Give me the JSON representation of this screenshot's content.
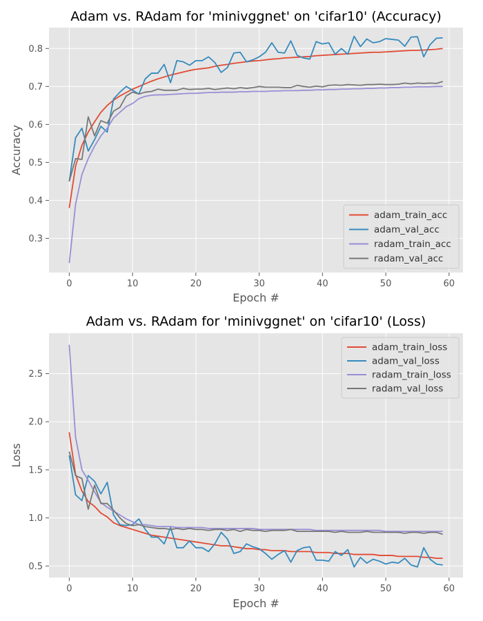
{
  "chart_data": [
    {
      "type": "line",
      "title": "Adam vs. RAdam for 'minivggnet' on 'cifar10' (Accuracy)",
      "xlabel": "Epoch #",
      "ylabel": "Accuracy",
      "xlim": [
        -3.2,
        62.2
      ],
      "ylim": [
        0.21,
        0.855
      ],
      "xticks": [
        0,
        10,
        20,
        30,
        40,
        50,
        60
      ],
      "yticks": [
        0.3,
        0.4,
        0.5,
        0.6,
        0.7,
        0.8
      ],
      "xtick_labels": [
        "0",
        "10",
        "20",
        "30",
        "40",
        "50",
        "60"
      ],
      "ytick_labels": [
        "0.3",
        "0.4",
        "0.5",
        "0.6",
        "0.7",
        "0.8"
      ],
      "grid": true,
      "legend_position": "lower-right",
      "series": [
        {
          "name": "adam_train_acc",
          "color": "#E24A33",
          "values": [
            0.38,
            0.49,
            0.545,
            0.58,
            0.607,
            0.632,
            0.65,
            0.664,
            0.675,
            0.684,
            0.693,
            0.7,
            0.707,
            0.714,
            0.72,
            0.725,
            0.73,
            0.734,
            0.738,
            0.742,
            0.745,
            0.747,
            0.749,
            0.753,
            0.756,
            0.758,
            0.761,
            0.763,
            0.765,
            0.767,
            0.768,
            0.77,
            0.772,
            0.773,
            0.775,
            0.776,
            0.777,
            0.778,
            0.779,
            0.781,
            0.782,
            0.783,
            0.784,
            0.785,
            0.786,
            0.787,
            0.788,
            0.789,
            0.79,
            0.79,
            0.791,
            0.792,
            0.793,
            0.794,
            0.795,
            0.795,
            0.796,
            0.797,
            0.798,
            0.8
          ]
        },
        {
          "name": "adam_val_acc",
          "color": "#348ABD",
          "values": [
            0.45,
            0.565,
            0.59,
            0.53,
            0.56,
            0.595,
            0.58,
            0.667,
            0.685,
            0.7,
            0.69,
            0.68,
            0.72,
            0.735,
            0.735,
            0.758,
            0.71,
            0.768,
            0.765,
            0.756,
            0.768,
            0.768,
            0.778,
            0.763,
            0.737,
            0.75,
            0.788,
            0.79,
            0.765,
            0.77,
            0.778,
            0.79,
            0.815,
            0.79,
            0.788,
            0.82,
            0.782,
            0.775,
            0.772,
            0.818,
            0.812,
            0.815,
            0.785,
            0.8,
            0.785,
            0.832,
            0.805,
            0.825,
            0.815,
            0.818,
            0.826,
            0.824,
            0.822,
            0.806,
            0.83,
            0.831,
            0.778,
            0.81,
            0.827,
            0.828
          ]
        },
        {
          "name": "radam_train_acc",
          "color": "#988ED5",
          "values": [
            0.235,
            0.39,
            0.468,
            0.51,
            0.543,
            0.57,
            0.59,
            0.617,
            0.632,
            0.647,
            0.655,
            0.668,
            0.674,
            0.677,
            0.678,
            0.678,
            0.679,
            0.68,
            0.681,
            0.682,
            0.682,
            0.683,
            0.684,
            0.684,
            0.685,
            0.685,
            0.685,
            0.686,
            0.686,
            0.687,
            0.687,
            0.687,
            0.688,
            0.688,
            0.689,
            0.689,
            0.689,
            0.69,
            0.69,
            0.691,
            0.691,
            0.692,
            0.692,
            0.693,
            0.693,
            0.694,
            0.694,
            0.695,
            0.695,
            0.696,
            0.696,
            0.697,
            0.697,
            0.698,
            0.698,
            0.699,
            0.699,
            0.699,
            0.7,
            0.7
          ]
        },
        {
          "name": "radam_val_acc",
          "color": "#777777",
          "values": [
            0.45,
            0.51,
            0.508,
            0.62,
            0.57,
            0.61,
            0.603,
            0.635,
            0.645,
            0.675,
            0.685,
            0.68,
            0.685,
            0.687,
            0.693,
            0.69,
            0.69,
            0.69,
            0.695,
            0.692,
            0.693,
            0.693,
            0.695,
            0.692,
            0.694,
            0.696,
            0.694,
            0.697,
            0.695,
            0.697,
            0.7,
            0.698,
            0.698,
            0.698,
            0.697,
            0.697,
            0.703,
            0.7,
            0.698,
            0.701,
            0.699,
            0.703,
            0.704,
            0.703,
            0.705,
            0.704,
            0.703,
            0.705,
            0.705,
            0.706,
            0.705,
            0.705,
            0.706,
            0.709,
            0.707,
            0.709,
            0.708,
            0.709,
            0.708,
            0.713
          ]
        }
      ]
    },
    {
      "type": "line",
      "title": "Adam vs. RAdam for 'minivggnet' on 'cifar10' (Loss)",
      "xlabel": "Epoch #",
      "ylabel": "Loss",
      "xlim": [
        -3.2,
        62.2
      ],
      "ylim": [
        0.38,
        2.92
      ],
      "xticks": [
        0,
        10,
        20,
        30,
        40,
        50,
        60
      ],
      "yticks": [
        0.5,
        1.0,
        1.5,
        2.0,
        2.5
      ],
      "xtick_labels": [
        "0",
        "10",
        "20",
        "30",
        "40",
        "50",
        "60"
      ],
      "ytick_labels": [
        "0.5",
        "1.0",
        "1.5",
        "2.0",
        "2.5"
      ],
      "grid": true,
      "legend_position": "upper-right",
      "series": [
        {
          "name": "adam_train_loss",
          "color": "#E24A33",
          "values": [
            1.89,
            1.45,
            1.28,
            1.17,
            1.12,
            1.05,
            1.01,
            0.95,
            0.92,
            0.9,
            0.88,
            0.86,
            0.84,
            0.82,
            0.81,
            0.8,
            0.79,
            0.78,
            0.77,
            0.76,
            0.75,
            0.74,
            0.73,
            0.72,
            0.71,
            0.71,
            0.7,
            0.69,
            0.68,
            0.68,
            0.67,
            0.67,
            0.66,
            0.66,
            0.66,
            0.65,
            0.65,
            0.65,
            0.65,
            0.64,
            0.64,
            0.64,
            0.63,
            0.63,
            0.63,
            0.62,
            0.62,
            0.62,
            0.62,
            0.61,
            0.61,
            0.61,
            0.6,
            0.6,
            0.6,
            0.6,
            0.59,
            0.59,
            0.58,
            0.58
          ]
        },
        {
          "name": "adam_val_loss",
          "color": "#348ABD",
          "values": [
            1.65,
            1.24,
            1.18,
            1.44,
            1.38,
            1.25,
            1.37,
            1.03,
            0.93,
            0.92,
            0.93,
            0.99,
            0.88,
            0.8,
            0.8,
            0.73,
            0.9,
            0.69,
            0.69,
            0.76,
            0.69,
            0.69,
            0.65,
            0.73,
            0.85,
            0.78,
            0.63,
            0.65,
            0.73,
            0.7,
            0.68,
            0.63,
            0.57,
            0.62,
            0.66,
            0.54,
            0.66,
            0.69,
            0.7,
            0.56,
            0.56,
            0.55,
            0.65,
            0.61,
            0.67,
            0.49,
            0.59,
            0.53,
            0.57,
            0.55,
            0.52,
            0.54,
            0.53,
            0.58,
            0.51,
            0.49,
            0.69,
            0.57,
            0.52,
            0.51
          ]
        },
        {
          "name": "radam_train_loss",
          "color": "#988ED5",
          "values": [
            2.8,
            1.84,
            1.5,
            1.39,
            1.27,
            1.16,
            1.11,
            1.07,
            1.03,
            0.99,
            0.96,
            0.93,
            0.93,
            0.92,
            0.91,
            0.91,
            0.91,
            0.9,
            0.9,
            0.9,
            0.9,
            0.9,
            0.89,
            0.89,
            0.89,
            0.89,
            0.89,
            0.89,
            0.89,
            0.89,
            0.88,
            0.88,
            0.88,
            0.88,
            0.88,
            0.88,
            0.88,
            0.88,
            0.88,
            0.87,
            0.87,
            0.87,
            0.87,
            0.87,
            0.87,
            0.87,
            0.87,
            0.87,
            0.87,
            0.87,
            0.86,
            0.86,
            0.86,
            0.86,
            0.86,
            0.86,
            0.86,
            0.86,
            0.86,
            0.86
          ]
        },
        {
          "name": "radam_val_loss",
          "color": "#777777",
          "values": [
            1.69,
            1.44,
            1.41,
            1.09,
            1.34,
            1.15,
            1.15,
            1.08,
            1.0,
            0.94,
            0.92,
            0.93,
            0.91,
            0.9,
            0.89,
            0.89,
            0.88,
            0.89,
            0.88,
            0.89,
            0.88,
            0.88,
            0.87,
            0.88,
            0.88,
            0.87,
            0.88,
            0.86,
            0.88,
            0.87,
            0.87,
            0.86,
            0.87,
            0.87,
            0.87,
            0.88,
            0.86,
            0.86,
            0.86,
            0.86,
            0.86,
            0.86,
            0.85,
            0.86,
            0.85,
            0.85,
            0.85,
            0.86,
            0.85,
            0.85,
            0.85,
            0.85,
            0.85,
            0.84,
            0.85,
            0.85,
            0.84,
            0.85,
            0.85,
            0.83
          ]
        }
      ]
    }
  ]
}
